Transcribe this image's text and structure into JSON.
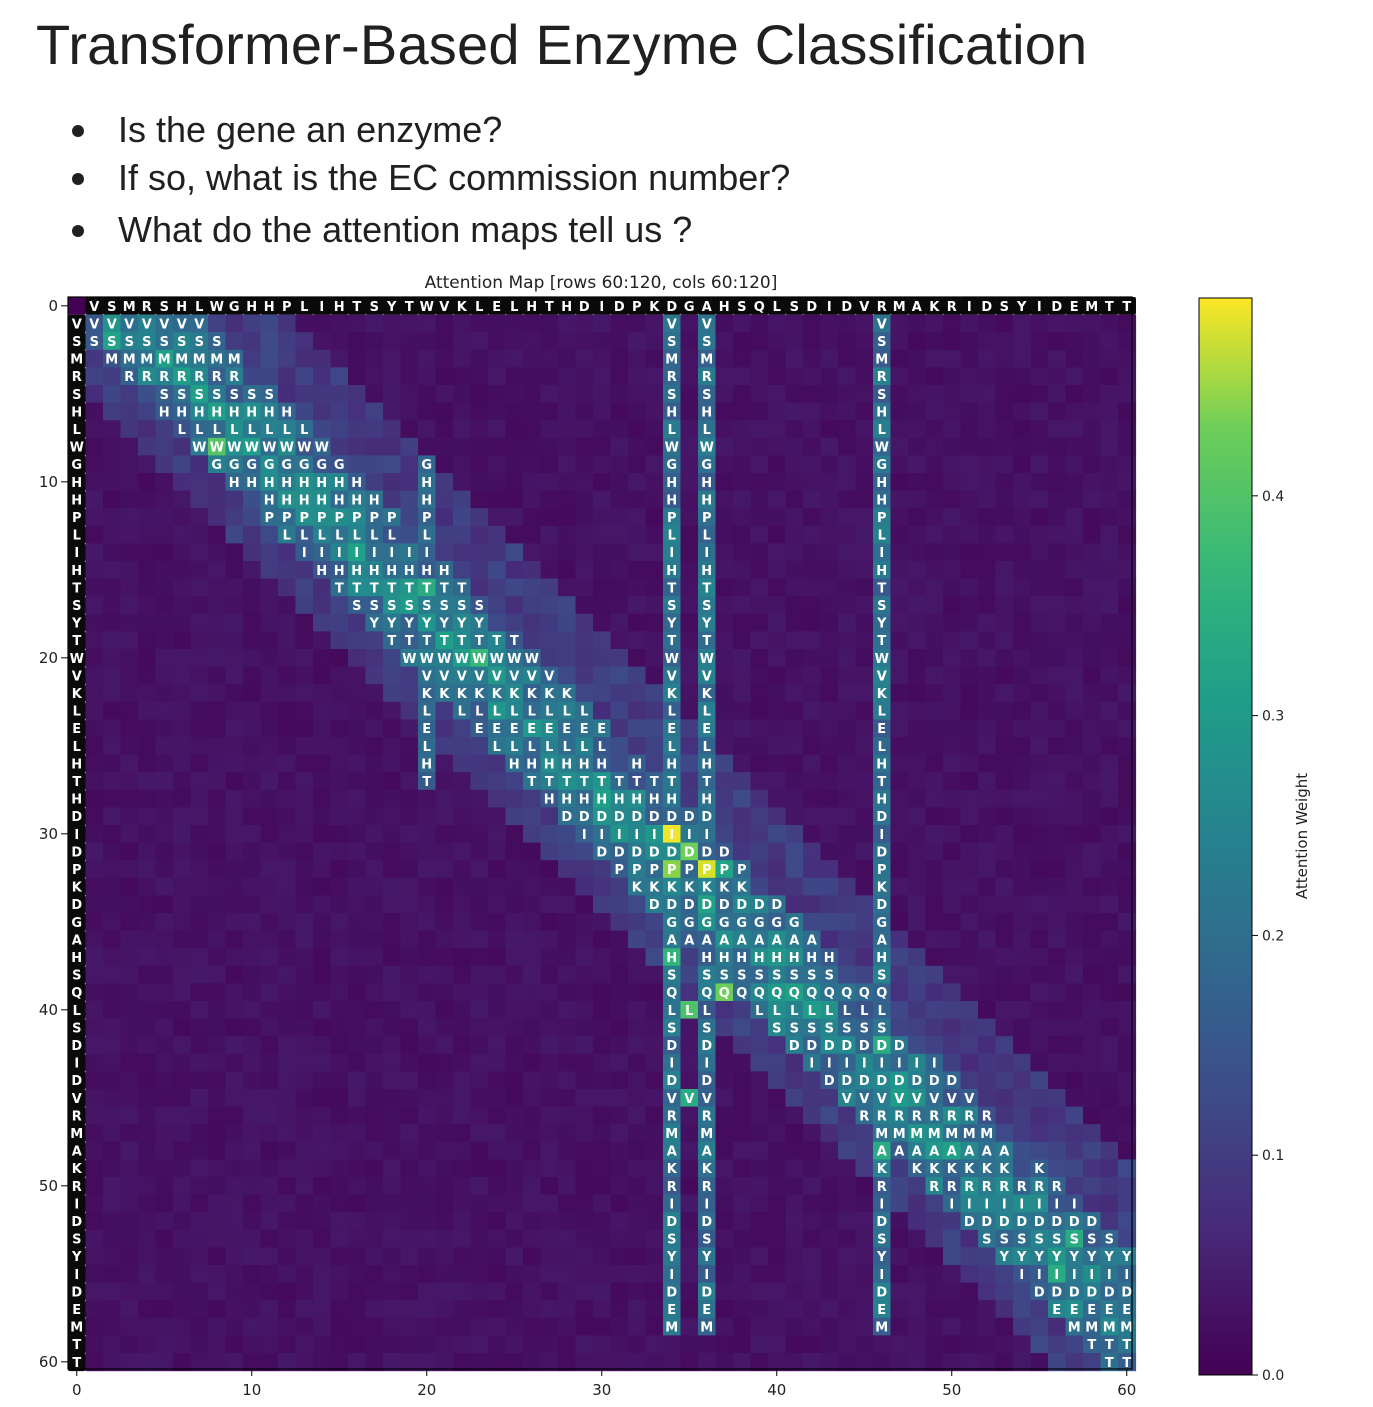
{
  "slide": {
    "title": "Transformer-Based Enzyme Classification",
    "bullets": [
      "Is the gene an enzyme?",
      "If so, what is the EC commission number?",
      "What do the attention maps tell us ?"
    ]
  },
  "chart_data": {
    "type": "heatmap",
    "title": "Attention Map [rows 60:120, cols 60:120]",
    "sequence": "VSMRSHLWGHHPLIHTSYTWVKLELHTHDIDPKDGAHSQLSDIDVRMAKRIDSYIDEMTT",
    "x_ticks": [
      0,
      10,
      20,
      30,
      40,
      50,
      60
    ],
    "y_ticks": [
      0,
      10,
      20,
      30,
      40,
      50,
      60
    ],
    "xlim": [
      0,
      60
    ],
    "ylim": [
      60,
      0
    ],
    "colormap": "viridis",
    "color_range": [
      0.0,
      0.49
    ],
    "colorbar": {
      "label": "Attention Weight",
      "ticks": [
        "0.0",
        "0.1",
        "0.2",
        "0.3",
        "0.4"
      ],
      "tick_values": [
        0.0,
        0.1,
        0.2,
        0.3,
        0.4
      ]
    },
    "structure": {
      "diagonal_band_width": 6,
      "column_stripes": [
        33,
        35,
        45
      ],
      "high_attention_cells": [
        [
          29,
          33,
          0.48
        ],
        [
          31,
          35,
          0.46
        ],
        [
          31,
          33,
          0.4
        ],
        [
          30,
          34,
          0.38
        ],
        [
          38,
          36,
          0.38
        ],
        [
          39,
          34,
          0.35
        ],
        [
          7,
          7,
          0.36
        ],
        [
          19,
          22,
          0.33
        ],
        [
          36,
          33,
          0.32
        ],
        [
          15,
          19,
          0.3
        ],
        [
          44,
          34,
          0.3
        ],
        [
          47,
          45,
          0.3
        ],
        [
          54,
          55,
          0.3
        ],
        [
          52,
          56,
          0.3
        ],
        [
          41,
          45,
          0.3
        ],
        [
          31,
          36,
          0.28
        ],
        [
          0,
          1,
          0.25
        ],
        [
          1,
          1,
          0.28
        ]
      ]
    }
  }
}
